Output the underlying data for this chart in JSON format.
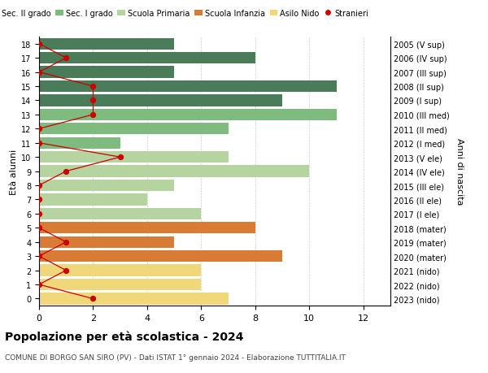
{
  "ages": [
    18,
    17,
    16,
    15,
    14,
    13,
    12,
    11,
    10,
    9,
    8,
    7,
    6,
    5,
    4,
    3,
    2,
    1,
    0
  ],
  "right_labels": [
    "2005 (V sup)",
    "2006 (IV sup)",
    "2007 (III sup)",
    "2008 (II sup)",
    "2009 (I sup)",
    "2010 (III med)",
    "2011 (II med)",
    "2012 (I med)",
    "2013 (V ele)",
    "2014 (IV ele)",
    "2015 (III ele)",
    "2016 (II ele)",
    "2017 (I ele)",
    "2018 (mater)",
    "2019 (mater)",
    "2020 (mater)",
    "2021 (nido)",
    "2022 (nido)",
    "2023 (nido)"
  ],
  "bar_values": [
    5,
    8,
    5,
    11,
    9,
    11,
    7,
    3,
    7,
    10,
    5,
    4,
    6,
    8,
    5,
    9,
    6,
    6,
    7
  ],
  "bar_colors": [
    "#4a7c59",
    "#4a7c59",
    "#4a7c59",
    "#4a7c59",
    "#4a7c59",
    "#7fba7f",
    "#7fba7f",
    "#7fba7f",
    "#b5d4a0",
    "#b5d4a0",
    "#b5d4a0",
    "#b5d4a0",
    "#b5d4a0",
    "#d87c35",
    "#d87c35",
    "#d87c35",
    "#f0d87a",
    "#f0d87a",
    "#f0d87a"
  ],
  "stranieri_values": [
    0,
    1,
    0,
    2,
    2,
    2,
    0,
    0,
    3,
    1,
    0,
    0,
    0,
    0,
    1,
    0,
    1,
    0,
    2
  ],
  "legend_labels": [
    "Sec. II grado",
    "Sec. I grado",
    "Scuola Primaria",
    "Scuola Infanzia",
    "Asilo Nido",
    "Stranieri"
  ],
  "legend_colors": [
    "#4a7c59",
    "#7fba7f",
    "#b5d4a0",
    "#d87c35",
    "#f0d87a",
    "#cc0000"
  ],
  "title": "Popolazione per età scolastica - 2024",
  "subtitle": "COMUNE DI BORGO SAN SIRO (PV) - Dati ISTAT 1° gennaio 2024 - Elaborazione TUTTITALIA.IT",
  "ylabel_left": "Età alunni",
  "ylabel_right": "Anni di nascita",
  "xlim": [
    0,
    13
  ],
  "xticks": [
    0,
    2,
    4,
    6,
    8,
    10,
    12
  ],
  "background_color": "#ffffff",
  "grid_color": "#cccccc"
}
